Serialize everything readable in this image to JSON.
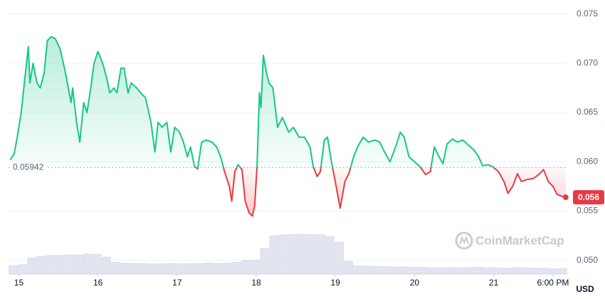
{
  "chart_data": {
    "type": "line",
    "x": [
      14.89,
      14.94,
      14.98,
      15.03,
      15.07,
      15.12,
      15.14,
      15.18,
      15.23,
      15.27,
      15.32,
      15.36,
      15.41,
      15.46,
      15.52,
      15.59,
      15.66,
      15.68,
      15.73,
      15.77,
      15.82,
      15.86,
      15.91,
      15.95,
      16.0,
      16.06,
      16.11,
      16.15,
      16.2,
      16.24,
      16.29,
      16.33,
      16.38,
      16.42,
      16.49,
      16.54,
      16.6,
      16.67,
      16.72,
      16.76,
      16.81,
      16.87,
      16.92,
      16.97,
      17.03,
      17.08,
      17.13,
      17.17,
      17.22,
      17.26,
      17.31,
      17.37,
      17.44,
      17.5,
      17.55,
      17.6,
      17.66,
      17.69,
      17.73,
      17.77,
      17.82,
      17.86,
      17.91,
      17.95,
      17.98,
      18.01,
      18.04,
      18.06,
      18.09,
      18.13,
      18.16,
      18.21,
      18.27,
      18.33,
      18.41,
      18.47,
      18.54,
      18.61,
      18.68,
      18.72,
      18.77,
      18.81,
      18.86,
      18.9,
      18.95,
      19.01,
      19.06,
      19.12,
      19.17,
      19.23,
      19.28,
      19.35,
      19.42,
      19.5,
      19.56,
      19.62,
      19.69,
      19.76,
      19.82,
      19.87,
      19.93,
      20.0,
      20.07,
      20.14,
      20.2,
      20.25,
      20.31,
      20.36,
      20.41,
      20.48,
      20.54,
      20.61,
      20.68,
      20.75,
      20.81,
      20.86,
      20.93,
      20.99,
      21.06,
      21.13,
      21.18,
      21.24,
      21.3,
      21.35,
      21.42,
      21.5,
      21.57,
      21.63,
      21.69,
      21.75,
      21.8,
      21.86,
      21.91
    ],
    "values": [
      0.0602,
      0.0608,
      0.0625,
      0.065,
      0.068,
      0.0717,
      0.068,
      0.07,
      0.068,
      0.0675,
      0.069,
      0.0723,
      0.0727,
      0.0725,
      0.0715,
      0.069,
      0.066,
      0.0675,
      0.064,
      0.062,
      0.066,
      0.065,
      0.0675,
      0.07,
      0.0712,
      0.07,
      0.0685,
      0.067,
      0.0675,
      0.067,
      0.0695,
      0.0695,
      0.067,
      0.068,
      0.0675,
      0.067,
      0.0665,
      0.064,
      0.061,
      0.064,
      0.0635,
      0.064,
      0.061,
      0.0635,
      0.063,
      0.062,
      0.0605,
      0.0615,
      0.0595,
      0.0593,
      0.062,
      0.0622,
      0.062,
      0.0615,
      0.0605,
      0.059,
      0.0575,
      0.056,
      0.059,
      0.0597,
      0.0592,
      0.056,
      0.0548,
      0.0545,
      0.0555,
      0.0595,
      0.067,
      0.0655,
      0.0708,
      0.069,
      0.068,
      0.0675,
      0.0635,
      0.0645,
      0.063,
      0.0635,
      0.0625,
      0.0625,
      0.0615,
      0.0595,
      0.0585,
      0.059,
      0.0622,
      0.0625,
      0.06,
      0.0575,
      0.0553,
      0.058,
      0.0588,
      0.0605,
      0.0615,
      0.0625,
      0.062,
      0.0622,
      0.062,
      0.061,
      0.06,
      0.0615,
      0.063,
      0.0625,
      0.0605,
      0.06,
      0.0595,
      0.0587,
      0.059,
      0.0615,
      0.0605,
      0.0598,
      0.0618,
      0.0623,
      0.062,
      0.0622,
      0.0617,
      0.0612,
      0.0605,
      0.0596,
      0.0597,
      0.0595,
      0.059,
      0.058,
      0.0568,
      0.0575,
      0.0588,
      0.058,
      0.0582,
      0.0583,
      0.0587,
      0.0592,
      0.058,
      0.0575,
      0.0567,
      0.0565,
      0.0564
    ],
    "baseline": 0.05942,
    "last_price": {
      "value": 0.0564,
      "label": "0.056"
    },
    "up_color": "#16c784",
    "down_color": "#ea3943",
    "xlim": [
      14.87,
      21.93
    ],
    "xticks": [
      15,
      16,
      17,
      18,
      19,
      20,
      21,
      {
        "value": 21.75,
        "label": "6:00 PM"
      }
    ],
    "ylim": [
      0.0486,
      0.0757
    ],
    "yticks": [
      {
        "value": 0.05,
        "label": "0.050"
      },
      0.055,
      {
        "value": 0.06,
        "label": "0.060"
      },
      0.065,
      {
        "value": 0.07,
        "label": "0.070"
      },
      0.075
    ],
    "grid": true,
    "currency": "USD",
    "watermark": "CoinMarketCap",
    "volume": {
      "ylim": [
        0,
        100
      ],
      "values": [
        20,
        22,
        38,
        42,
        44,
        44,
        45,
        45,
        47,
        46,
        40,
        28,
        26,
        25,
        25,
        24,
        24,
        25,
        24,
        25,
        25,
        26,
        25,
        26,
        28,
        33,
        33,
        60,
        90,
        92,
        93,
        93,
        93,
        92,
        88,
        75,
        30,
        20,
        19,
        18,
        18,
        17,
        17,
        16,
        16,
        15,
        15,
        15,
        15,
        16,
        16,
        15,
        15,
        14,
        15,
        15,
        14,
        14,
        13,
        13
      ]
    }
  }
}
